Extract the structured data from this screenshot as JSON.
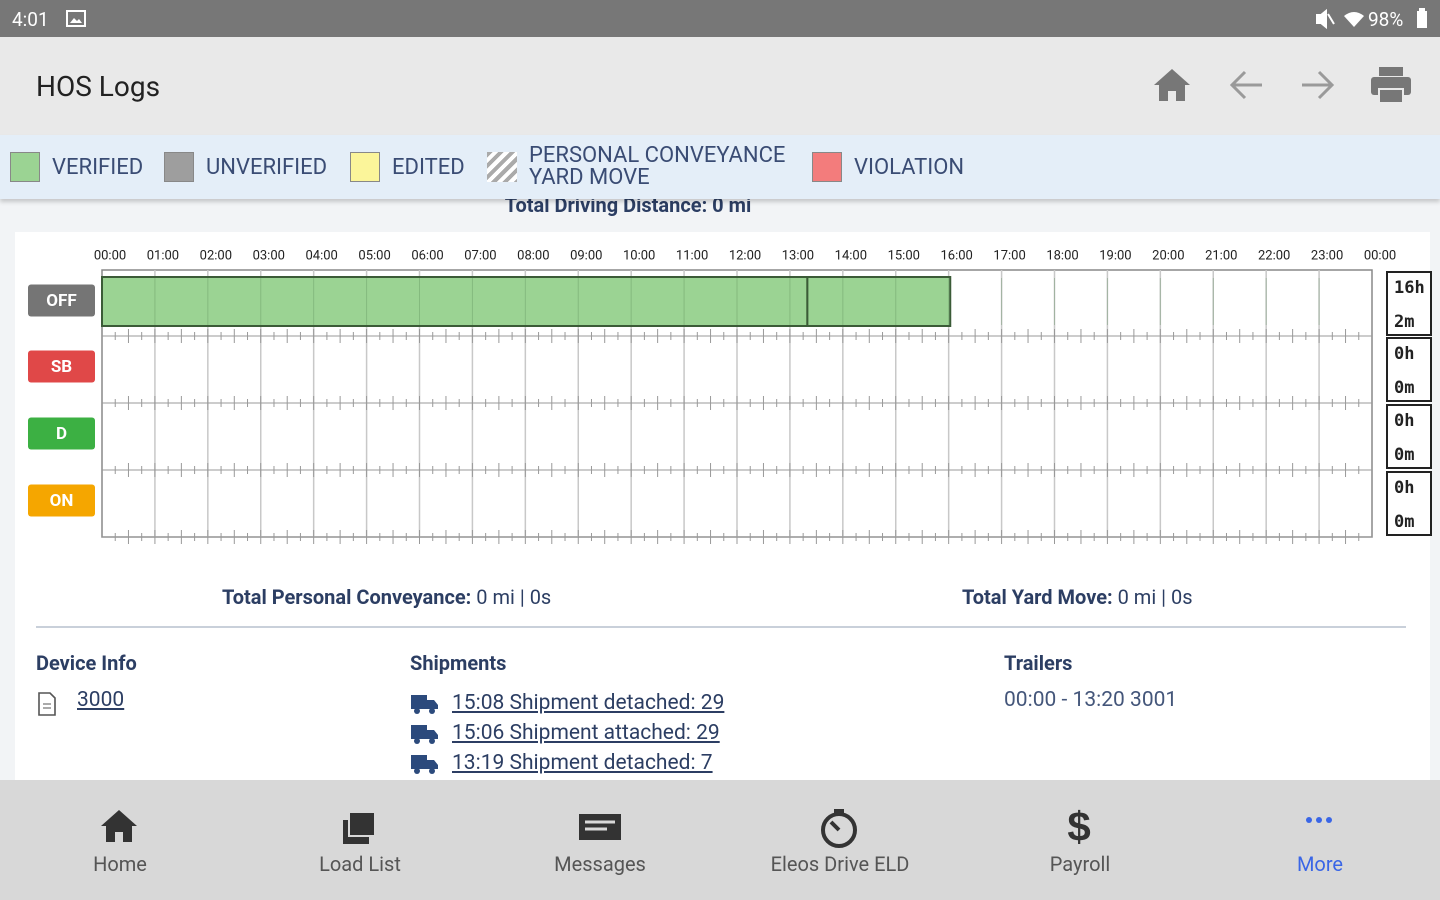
{
  "status_bar": {
    "time": "4:01",
    "battery": "98%"
  },
  "header": {
    "title": "HOS Logs"
  },
  "legend": [
    "VERIFIED",
    "UNVERIFIED",
    "EDITED",
    "PERSONAL CONVEYANCE",
    "YARD MOVE",
    "VIOLATION"
  ],
  "driving_distance": "Total Driving Distance: 0 mi",
  "log": {
    "hour_labels": [
      "00:00",
      "01:00",
      "02:00",
      "03:00",
      "04:00",
      "05:00",
      "06:00",
      "07:00",
      "08:00",
      "09:00",
      "10:00",
      "11:00",
      "12:00",
      "13:00",
      "14:00",
      "15:00",
      "16:00",
      "17:00",
      "18:00",
      "19:00",
      "20:00",
      "21:00",
      "22:00",
      "23:00",
      "00:00"
    ],
    "rows": [
      {
        "status": "OFF",
        "total_hours": "16h",
        "total_minutes": "2m",
        "segments": [
          [
            0,
            13.33
          ],
          [
            13.33,
            16.03
          ]
        ]
      },
      {
        "status": "SB",
        "total_hours": "0h",
        "total_minutes": "0m",
        "segments": []
      },
      {
        "status": "D",
        "total_hours": "0h",
        "total_minutes": "0m",
        "segments": []
      },
      {
        "status": "ON",
        "total_hours": "0h",
        "total_minutes": "0m",
        "segments": []
      }
    ]
  },
  "totals": {
    "personal_conveyance": {
      "label": "Total Personal Conveyance:",
      "value": "0 mi | 0s"
    },
    "yard_move": {
      "label": "Total Yard Move:",
      "value": "0 mi | 0s"
    }
  },
  "device_info": {
    "title": "Device Info",
    "items": [
      "3000"
    ]
  },
  "shipments": {
    "title": "Shipments",
    "items": [
      "15:08 Shipment detached: 29",
      "15:06 Shipment attached: 29",
      "13:19 Shipment detached: 7"
    ]
  },
  "trailers": {
    "title": "Trailers",
    "items": [
      "00:00 - 13:20 3001"
    ]
  },
  "nav": [
    "Home",
    "Load List",
    "Messages",
    "Eleos Drive ELD",
    "Payroll",
    "More"
  ]
}
